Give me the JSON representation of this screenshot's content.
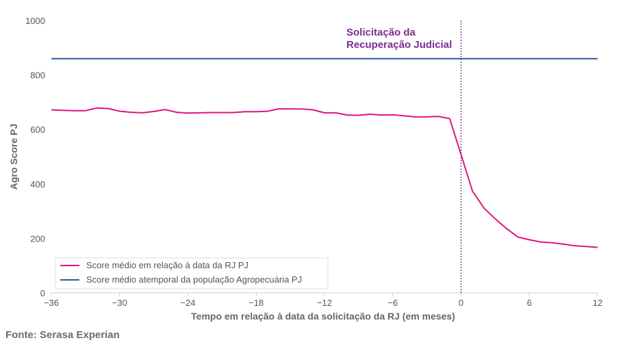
{
  "chart_data": {
    "type": "line",
    "xlabel": "Tempo em relação à data da solicitação da RJ (em meses)",
    "ylabel": "Agro Score PJ",
    "xlim": [
      -36,
      12
    ],
    "ylim": [
      0,
      1000
    ],
    "xticks": [
      -36,
      -30,
      -24,
      -18,
      -12,
      -6,
      0,
      6,
      12
    ],
    "yticks": [
      0,
      200,
      400,
      600,
      800,
      1000
    ],
    "xtick_labels": [
      "−36",
      "−30",
      "−24",
      "−18",
      "−12",
      "−6",
      "0",
      "6",
      "12"
    ],
    "ytick_labels": [
      "0",
      "200",
      "400",
      "600",
      "800",
      "1000"
    ],
    "grid": false,
    "legend_position": "bottom-left",
    "series": [
      {
        "name": "Score médio em relação à data da RJ PJ",
        "color": "#e0147d",
        "x": [
          -36,
          -35,
          -34,
          -33,
          -32,
          -31,
          -30,
          -29,
          -28,
          -27,
          -26,
          -25,
          -24,
          -23,
          -22,
          -21,
          -20,
          -19,
          -18,
          -17,
          -16,
          -15,
          -14,
          -13,
          -12,
          -11,
          -10,
          -9,
          -8,
          -7,
          -6,
          -5,
          -4,
          -3,
          -2,
          -1,
          0,
          1,
          2,
          3,
          4,
          5,
          6,
          7,
          8,
          9,
          10,
          11,
          12
        ],
        "y": [
          672,
          670,
          669,
          669,
          679,
          677,
          667,
          663,
          661,
          666,
          673,
          663,
          660,
          661,
          662,
          662,
          662,
          665,
          665,
          667,
          676,
          675,
          675,
          672,
          661,
          661,
          653,
          652,
          656,
          653,
          654,
          650,
          646,
          646,
          648,
          640,
          508,
          374,
          312,
          272,
          236,
          205,
          195,
          187,
          184,
          179,
          173,
          170,
          167
        ]
      },
      {
        "name": "Score médio atemporal da população Agropecuária PJ",
        "color": "#2a5a9a",
        "x": [
          -36,
          12
        ],
        "y": [
          860,
          860
        ]
      }
    ],
    "reference_line": {
      "x": 0,
      "color": "#7b2d8e",
      "label_lines": [
        "Solicitação da",
        "Recuperação Judicial"
      ]
    }
  },
  "source": "Fonte: Serasa Experian"
}
